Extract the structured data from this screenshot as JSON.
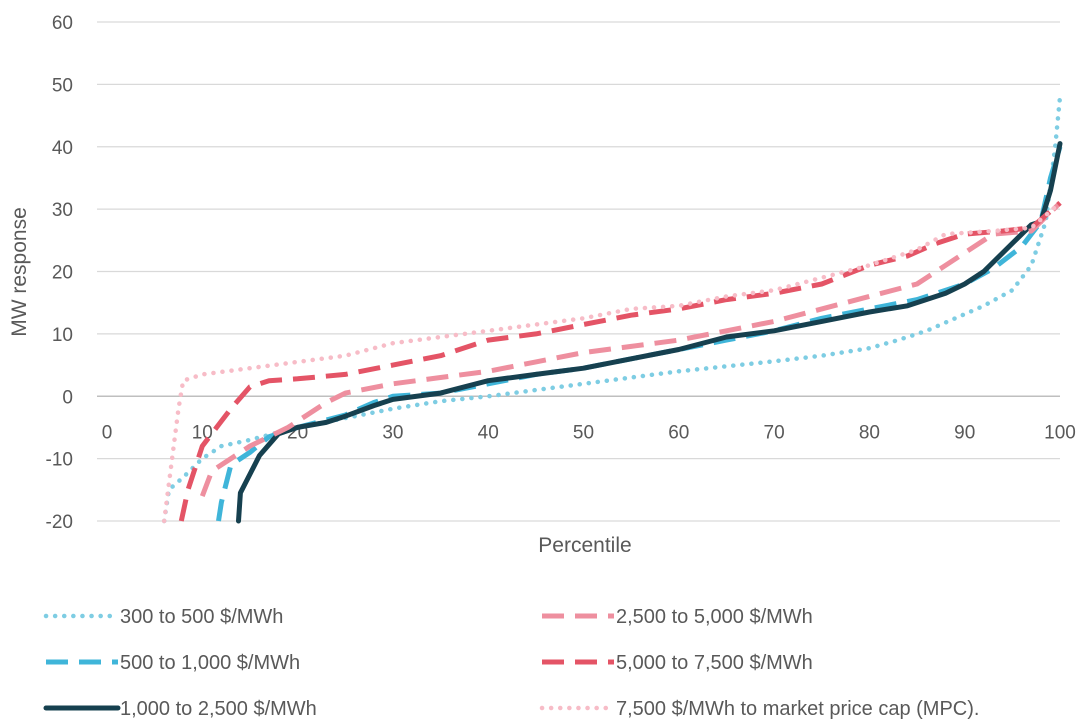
{
  "chart_data": {
    "type": "line",
    "title": "",
    "xlabel": "Percentile",
    "ylabel": "MW response",
    "xlim": [
      0,
      100
    ],
    "ylim": [
      -20,
      60
    ],
    "x_ticks": [
      "0",
      "10",
      "20",
      "30",
      "40",
      "50",
      "60",
      "70",
      "80",
      "90",
      "100"
    ],
    "y_ticks": [
      "60",
      "50",
      "40",
      "30",
      "20",
      "10",
      "0",
      "-10",
      "-20"
    ],
    "grid": "horizontal",
    "legend_position": "bottom",
    "series": [
      {
        "name": "300 to 500 $/MWh",
        "color": "#7ecde3",
        "style": "dotted",
        "points": [
          [
            6,
            -20
          ],
          [
            6.5,
            -15
          ],
          [
            8,
            -13
          ],
          [
            10,
            -10
          ],
          [
            12,
            -8
          ],
          [
            15,
            -7
          ],
          [
            20,
            -5
          ],
          [
            25,
            -3.5
          ],
          [
            30,
            -2
          ],
          [
            35,
            -0.8
          ],
          [
            40,
            0
          ],
          [
            45,
            1
          ],
          [
            50,
            2
          ],
          [
            55,
            3
          ],
          [
            60,
            4
          ],
          [
            65,
            4.8
          ],
          [
            70,
            5.6
          ],
          [
            75,
            6.5
          ],
          [
            80,
            7.7
          ],
          [
            83,
            9
          ],
          [
            86,
            10.5
          ],
          [
            89,
            12.5
          ],
          [
            92,
            14.5
          ],
          [
            95,
            17
          ],
          [
            97,
            21
          ],
          [
            98.5,
            28
          ],
          [
            99.5,
            40
          ],
          [
            100,
            48
          ]
        ]
      },
      {
        "name": "500 to 1,000 $/MWh",
        "color": "#3fb5d9",
        "style": "dashed",
        "points": [
          [
            11.7,
            -20
          ],
          [
            12,
            -17
          ],
          [
            13,
            -11
          ],
          [
            15,
            -9
          ],
          [
            17,
            -6.5
          ],
          [
            20,
            -5
          ],
          [
            25,
            -3
          ],
          [
            28,
            -1
          ],
          [
            30,
            0
          ],
          [
            35,
            0.5
          ],
          [
            40,
            2
          ],
          [
            45,
            3.5
          ],
          [
            50,
            4.5
          ],
          [
            55,
            6
          ],
          [
            60,
            7.5
          ],
          [
            65,
            9
          ],
          [
            70,
            10.5
          ],
          [
            75,
            12.5
          ],
          [
            80,
            14
          ],
          [
            85,
            15.5
          ],
          [
            90,
            18
          ],
          [
            93,
            20.5
          ],
          [
            96,
            24
          ],
          [
            98,
            28
          ],
          [
            99,
            35
          ],
          [
            100,
            40
          ]
        ]
      },
      {
        "name": "1,000 to 2,500 $/MWh",
        "color": "#16404f",
        "style": "solid",
        "points": [
          [
            13.8,
            -20
          ],
          [
            14,
            -15.5
          ],
          [
            16,
            -9.5
          ],
          [
            18,
            -6
          ],
          [
            20,
            -5
          ],
          [
            23,
            -4.2
          ],
          [
            25,
            -3.2
          ],
          [
            28,
            -1.5
          ],
          [
            30,
            -0.5
          ],
          [
            35,
            0.5
          ],
          [
            40,
            2.5
          ],
          [
            45,
            3.5
          ],
          [
            50,
            4.5
          ],
          [
            55,
            6
          ],
          [
            60,
            7.5
          ],
          [
            65,
            9.5
          ],
          [
            70,
            10.5
          ],
          [
            75,
            12
          ],
          [
            80,
            13.5
          ],
          [
            84,
            14.5
          ],
          [
            88,
            16.5
          ],
          [
            90,
            18
          ],
          [
            92,
            20
          ],
          [
            95,
            24.5
          ],
          [
            97,
            27.5
          ],
          [
            98,
            28
          ],
          [
            99,
            33
          ],
          [
            100,
            40.5
          ]
        ]
      },
      {
        "name": "2,500 to 5,000 $/MWh",
        "color": "#ee8f9f",
        "style": "dashed",
        "points": [
          [
            10,
            -16
          ],
          [
            11,
            -12
          ],
          [
            13,
            -10
          ],
          [
            15,
            -8
          ],
          [
            17,
            -6.5
          ],
          [
            19,
            -5
          ],
          [
            21,
            -3
          ],
          [
            23,
            -1
          ],
          [
            25,
            0.5
          ],
          [
            30,
            2
          ],
          [
            35,
            3
          ],
          [
            40,
            4
          ],
          [
            45,
            5.5
          ],
          [
            50,
            7
          ],
          [
            55,
            8
          ],
          [
            60,
            9
          ],
          [
            65,
            10.5
          ],
          [
            70,
            12
          ],
          [
            75,
            14
          ],
          [
            80,
            16
          ],
          [
            85,
            18
          ],
          [
            88,
            21
          ],
          [
            90,
            23
          ],
          [
            93,
            26
          ],
          [
            97,
            26.5
          ],
          [
            100,
            31
          ]
        ]
      },
      {
        "name": "5,000 to 7,500 $/MWh",
        "color": "#e45466",
        "style": "dashed",
        "points": [
          [
            7.8,
            -20
          ],
          [
            8.5,
            -15
          ],
          [
            10,
            -8
          ],
          [
            11.5,
            -5
          ],
          [
            13,
            -2
          ],
          [
            15,
            1.5
          ],
          [
            17,
            2.5
          ],
          [
            20,
            2.8
          ],
          [
            25,
            3.5
          ],
          [
            30,
            5
          ],
          [
            35,
            6.5
          ],
          [
            40,
            9
          ],
          [
            45,
            10
          ],
          [
            50,
            11.5
          ],
          [
            55,
            13
          ],
          [
            60,
            14
          ],
          [
            65,
            15.5
          ],
          [
            70,
            16.5
          ],
          [
            75,
            18
          ],
          [
            80,
            21
          ],
          [
            84,
            22.5
          ],
          [
            87,
            24.5
          ],
          [
            90,
            26
          ],
          [
            94,
            26.5
          ],
          [
            97,
            27
          ],
          [
            100,
            31
          ]
        ]
      },
      {
        "name": "7,500 $/MWh to market price cap (MPC).",
        "color": "#f7bcc7",
        "style": "dotted",
        "points": [
          [
            6,
            -20
          ],
          [
            6.5,
            -14
          ],
          [
            7,
            -8
          ],
          [
            7.5,
            -2
          ],
          [
            8,
            2.5
          ],
          [
            10,
            3.5
          ],
          [
            15,
            4.5
          ],
          [
            20,
            5.5
          ],
          [
            25,
            6.5
          ],
          [
            30,
            8.5
          ],
          [
            35,
            9.5
          ],
          [
            40,
            10.5
          ],
          [
            45,
            11.5
          ],
          [
            50,
            12.5
          ],
          [
            55,
            14
          ],
          [
            60,
            14.5
          ],
          [
            65,
            16
          ],
          [
            70,
            17
          ],
          [
            75,
            19
          ],
          [
            80,
            21
          ],
          [
            85,
            23.5
          ],
          [
            88,
            26
          ],
          [
            93,
            26.5
          ],
          [
            97,
            27
          ],
          [
            100,
            31
          ]
        ]
      }
    ]
  }
}
